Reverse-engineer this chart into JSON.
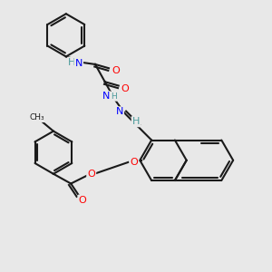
{
  "bg_color": "#e8e8e8",
  "bond_color": "#1a1a1a",
  "bond_width": 1.5,
  "atom_colors": {
    "O": "#ff0000",
    "N": "#0000ff",
    "H": "#4a9a9a",
    "C": "#1a1a1a"
  },
  "font_size": 8,
  "figsize": [
    3.0,
    3.0
  ],
  "dpi": 100
}
